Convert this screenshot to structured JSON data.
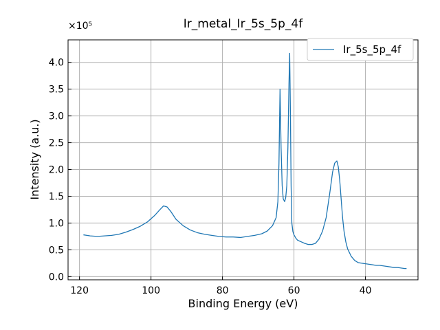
{
  "chart_data": {
    "type": "line",
    "title": "Ir_metal_Ir_5s_5p_4f",
    "xlabel": "Binding Energy (eV)",
    "ylabel": "Intensity (a.u.)",
    "y_scale_label": "×10⁵",
    "x_reversed": true,
    "xlim": [
      123.2,
      25.3
    ],
    "ylim": [
      -0.06,
      4.42
    ],
    "x_ticks": [
      120,
      100,
      80,
      60,
      40
    ],
    "x_tick_labels": [
      "120",
      "100",
      "80",
      "60",
      "40"
    ],
    "y_ticks": [
      0.0,
      0.5,
      1.0,
      1.5,
      2.0,
      2.5,
      3.0,
      3.5,
      4.0
    ],
    "y_tick_labels": [
      "0.0",
      "0.5",
      "1.0",
      "1.5",
      "2.0",
      "2.5",
      "3.0",
      "3.5",
      "4.0"
    ],
    "grid": true,
    "legend_position": "top-right",
    "colors": {
      "series": "#1f77b4",
      "grid": "#b0b0b0"
    },
    "series": [
      {
        "name": "Ir_5s_5p_4f",
        "x": [
          118.9,
          117.0,
          115.0,
          113.0,
          111.0,
          109.0,
          107.0,
          105.0,
          103.0,
          101.0,
          99.0,
          97.5,
          96.5,
          95.5,
          94.5,
          93.0,
          91.0,
          89.0,
          87.0,
          85.0,
          83.0,
          81.0,
          79.0,
          77.0,
          75.0,
          73.0,
          71.0,
          69.0,
          67.5,
          66.0,
          65.0,
          64.5,
          64.2,
          63.9,
          63.6,
          63.3,
          63.0,
          62.6,
          62.3,
          62.0,
          61.7,
          61.4,
          61.2,
          61.0,
          60.8,
          60.6,
          60.3,
          60.0,
          59.5,
          59.0,
          58.0,
          57.0,
          56.0,
          55.0,
          54.0,
          53.0,
          52.0,
          51.0,
          50.0,
          49.2,
          48.6,
          48.0,
          47.6,
          47.2,
          46.8,
          46.4,
          46.0,
          45.5,
          45.0,
          44.0,
          43.0,
          42.0,
          41.0,
          40.0,
          39.0,
          38.0,
          37.0,
          36.0,
          35.0,
          34.0,
          33.0,
          32.0,
          31.0,
          30.0,
          29.0,
          28.5
        ],
        "values": [
          0.78,
          0.76,
          0.75,
          0.76,
          0.77,
          0.79,
          0.83,
          0.88,
          0.94,
          1.02,
          1.14,
          1.25,
          1.32,
          1.3,
          1.22,
          1.07,
          0.95,
          0.87,
          0.82,
          0.79,
          0.77,
          0.75,
          0.74,
          0.74,
          0.73,
          0.75,
          0.77,
          0.8,
          0.85,
          0.95,
          1.1,
          1.4,
          2.1,
          3.5,
          2.4,
          1.7,
          1.45,
          1.4,
          1.48,
          1.7,
          2.4,
          3.6,
          4.17,
          3.1,
          1.7,
          1.0,
          0.84,
          0.78,
          0.72,
          0.68,
          0.65,
          0.62,
          0.6,
          0.6,
          0.62,
          0.7,
          0.85,
          1.1,
          1.55,
          1.95,
          2.12,
          2.16,
          2.05,
          1.8,
          1.45,
          1.1,
          0.85,
          0.65,
          0.52,
          0.38,
          0.3,
          0.26,
          0.25,
          0.24,
          0.23,
          0.22,
          0.21,
          0.21,
          0.2,
          0.19,
          0.18,
          0.17,
          0.17,
          0.16,
          0.15,
          0.15
        ]
      }
    ]
  }
}
